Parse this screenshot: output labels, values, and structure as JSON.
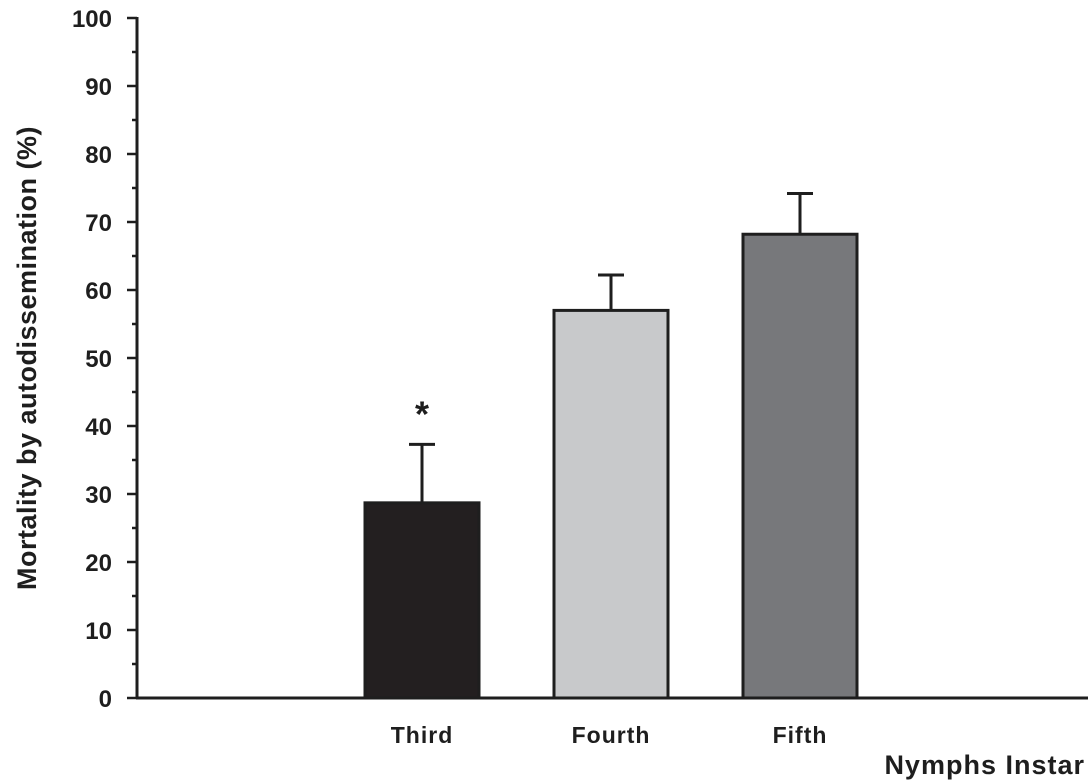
{
  "chart_data": {
    "type": "bar",
    "categories": [
      "Third",
      "Fourth",
      "Fifth"
    ],
    "values": [
      28.7,
      57.0,
      68.2
    ],
    "errors": [
      8.6,
      5.2,
      6.0
    ],
    "annotations": [
      {
        "category": "Third",
        "text": "*"
      }
    ],
    "colors": [
      "#231f20",
      "#c8c9cb",
      "#77787b"
    ],
    "xlabel": "Nymphs Instar",
    "ylabel": "Mortality by autodissemination (%)",
    "ylim": [
      0,
      100
    ],
    "yticks": [
      0,
      10,
      20,
      30,
      40,
      50,
      60,
      70,
      80,
      90,
      100
    ],
    "grid": false,
    "legend": "none"
  }
}
